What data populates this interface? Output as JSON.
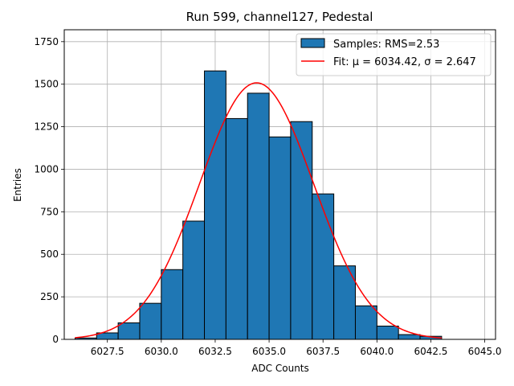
{
  "chart_data": {
    "type": "bar",
    "title": "Run 599, channel127, Pedestal",
    "xlabel": "ADC Counts",
    "ylabel": "Entries",
    "xlim": [
      6025.5,
      6045.5
    ],
    "ylim": [
      0,
      1820
    ],
    "xticks": [
      6027.5,
      6030.0,
      6032.5,
      6035.0,
      6037.5,
      6040.0,
      6042.5,
      6045.0
    ],
    "xtick_labels": [
      "6027.5",
      "6030.0",
      "6032.5",
      "6035.0",
      "6037.5",
      "6040.0",
      "6042.5",
      "6045.0"
    ],
    "yticks": [
      0,
      250,
      500,
      750,
      1000,
      1250,
      1500,
      1750
    ],
    "ytick_labels": [
      "0",
      "250",
      "500",
      "750",
      "1000",
      "1250",
      "1500",
      "1750"
    ],
    "grid": true,
    "bin_edges": [
      6026,
      6027,
      6028,
      6029,
      6030,
      6031,
      6032,
      6033,
      6034,
      6035,
      6036,
      6037,
      6038,
      6039,
      6040,
      6041,
      6042,
      6043
    ],
    "counts": [
      8,
      38,
      97,
      212,
      410,
      695,
      1578,
      1298,
      1447,
      1190,
      1280,
      855,
      432,
      197,
      78,
      28,
      18
    ],
    "bar_color": "#1f77b4",
    "fit": {
      "mu": 6034.42,
      "sigma": 2.647,
      "amplitude": 1508,
      "x_range": [
        6026,
        6043
      ],
      "color": "#ff0000"
    },
    "legend": {
      "position": "top-right",
      "entries": [
        {
          "label": "Samples: RMS=2.53",
          "kind": "patch"
        },
        {
          "label": "Fit: μ = 6034.42, σ = 2.647",
          "kind": "line"
        }
      ]
    }
  }
}
